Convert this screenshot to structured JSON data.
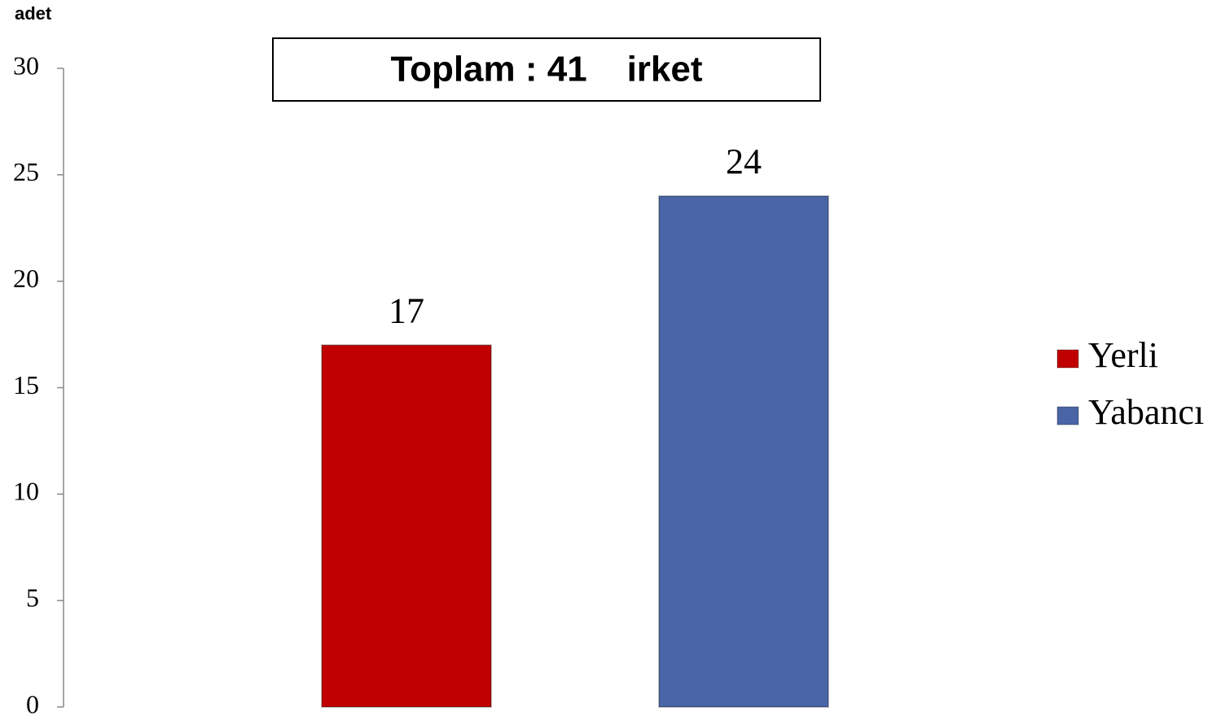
{
  "chart_data": {
    "type": "bar",
    "ylabel": "adet",
    "annotation": "Toplam : 41    irket",
    "categories": [
      null
    ],
    "series": [
      {
        "name": "Yerli",
        "color": "#c00000",
        "values": [
          17
        ]
      },
      {
        "name": "Yabancı",
        "color": "#4a65a6",
        "values": [
          24
        ]
      }
    ],
    "ylim": [
      0,
      30
    ],
    "yticks": [
      0,
      5,
      10,
      15,
      20,
      25,
      30
    ],
    "grid": false,
    "legend": "right"
  }
}
